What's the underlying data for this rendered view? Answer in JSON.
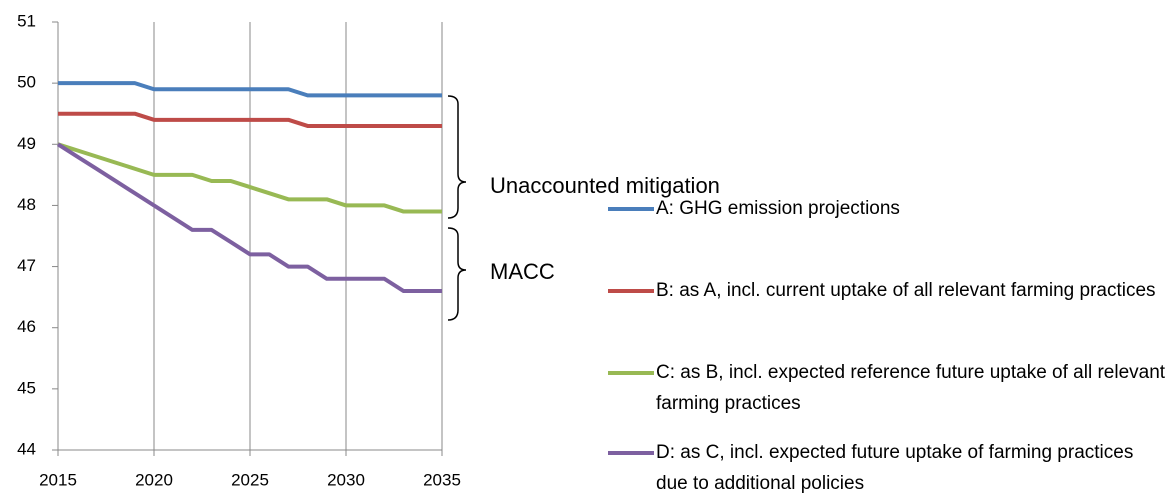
{
  "chart_data": {
    "type": "line",
    "x": [
      2015,
      2016,
      2017,
      2018,
      2019,
      2020,
      2021,
      2022,
      2023,
      2024,
      2025,
      2026,
      2027,
      2028,
      2029,
      2030,
      2031,
      2032,
      2033,
      2034,
      2035
    ],
    "series": [
      {
        "name": "A: GHG emission projections",
        "color": "#4a7ebb",
        "values": [
          50,
          50,
          50,
          50,
          50,
          49.9,
          49.9,
          49.9,
          49.9,
          49.9,
          49.9,
          49.9,
          49.9,
          49.8,
          49.8,
          49.8,
          49.8,
          49.8,
          49.8,
          49.8,
          49.8
        ]
      },
      {
        "name": "B: as A, incl. current uptake of all relevant farming practices",
        "color": "#be4b48",
        "values": [
          49.5,
          49.5,
          49.5,
          49.5,
          49.5,
          49.4,
          49.4,
          49.4,
          49.4,
          49.4,
          49.4,
          49.4,
          49.4,
          49.3,
          49.3,
          49.3,
          49.3,
          49.3,
          49.3,
          49.3,
          49.3
        ]
      },
      {
        "name": "C: as B, incl. expected reference future uptake of all relevant farming practices",
        "color": "#98b954",
        "values": [
          49,
          48.9,
          48.8,
          48.7,
          48.6,
          48.5,
          48.5,
          48.5,
          48.4,
          48.4,
          48.3,
          48.2,
          48.1,
          48.1,
          48.1,
          48,
          48,
          48,
          47.9,
          47.9,
          47.9
        ]
      },
      {
        "name": "D: as C, incl. expected future uptake of farming practices due to additional policies",
        "color": "#7d60a0",
        "values": [
          49,
          48.8,
          48.6,
          48.4,
          48.2,
          48,
          47.8,
          47.6,
          47.6,
          47.4,
          47.2,
          47.2,
          47,
          47,
          46.8,
          46.8,
          46.8,
          46.8,
          46.6,
          46.6,
          46.6
        ]
      }
    ],
    "xlim": [
      2015,
      2035
    ],
    "xticks": [
      2015,
      2020,
      2025,
      2030,
      2035
    ],
    "ylim": [
      44,
      51
    ],
    "yticks": [
      44,
      45,
      46,
      47,
      48,
      49,
      50,
      51
    ],
    "grid": "x",
    "annotations": [
      "Unaccounted mitigation",
      "MACC"
    ]
  }
}
